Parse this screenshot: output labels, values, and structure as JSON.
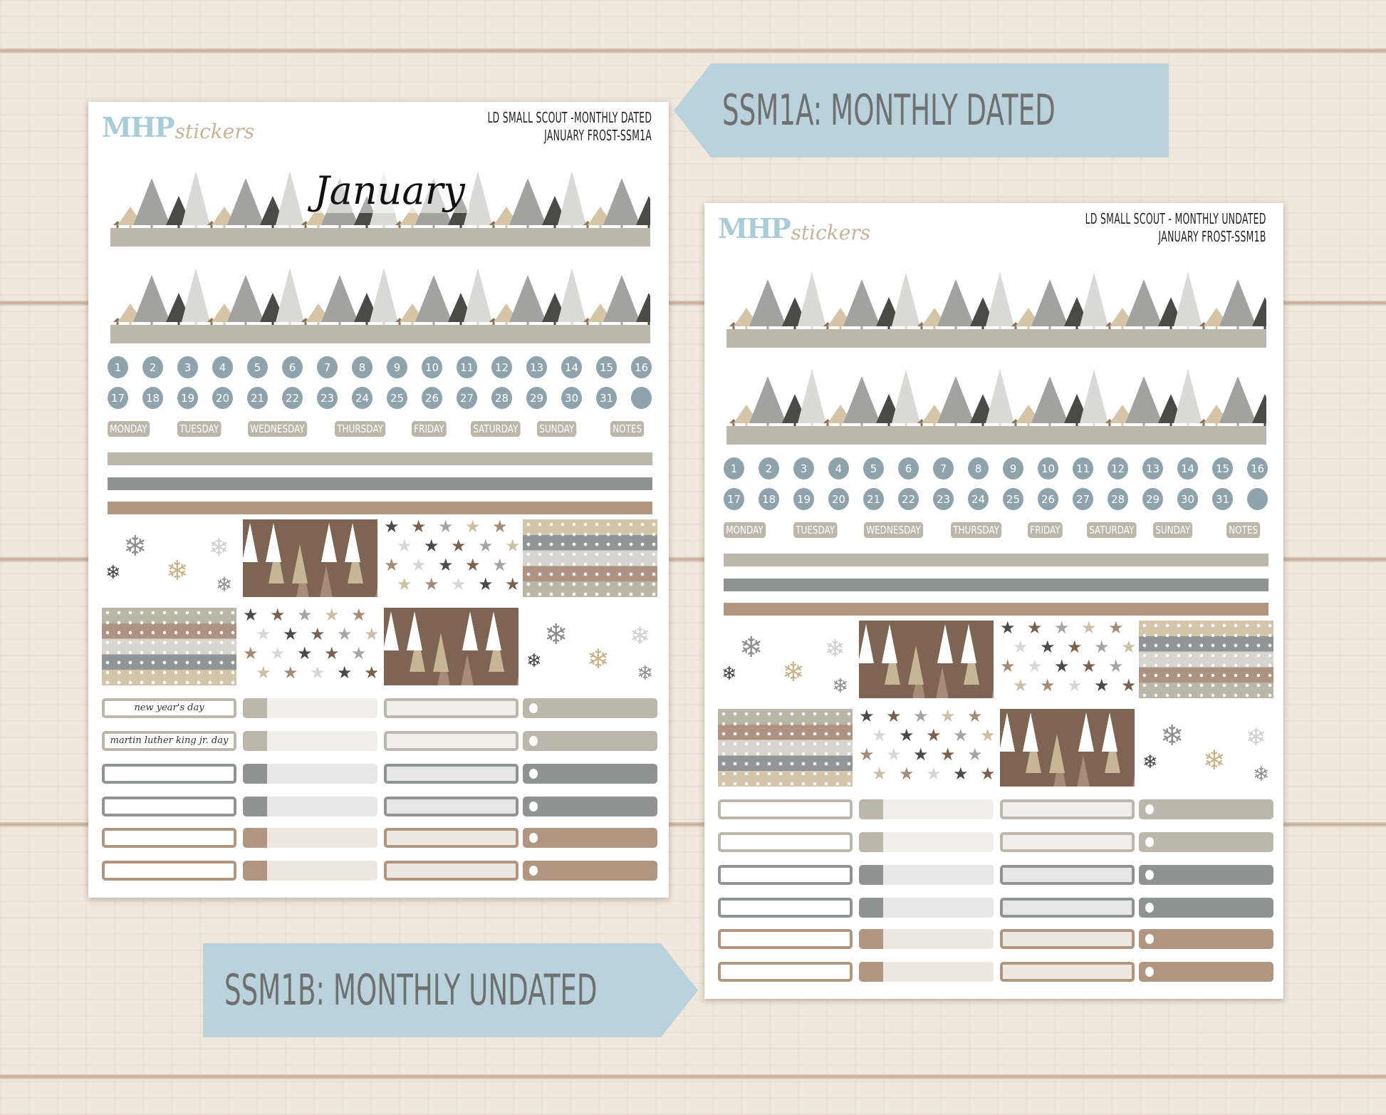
{
  "colors": {
    "tan": "#bdb6aa",
    "gray": "#8f9392",
    "brown": "#b09680",
    "blue": "#8fa3ac",
    "tag": "#b9d2db",
    "wood": "#f0e7dd"
  },
  "tags": [
    {
      "label": "SSM1A: MONTHLY DATED"
    },
    {
      "label": "SSM1B: MONTHLY UNDATED"
    }
  ],
  "sheets": [
    {
      "logo": {
        "mark": "MHP",
        "word": "stickers"
      },
      "header": [
        "LD SMALL SCOUT -MONTHLY DATED",
        "JANUARY FROST-SSM1A"
      ],
      "month": "January",
      "dates": [
        "1",
        "2",
        "3",
        "4",
        "5",
        "6",
        "7",
        "8",
        "9",
        "10",
        "11",
        "12",
        "13",
        "14",
        "15",
        "16",
        "17",
        "18",
        "19",
        "20",
        "21",
        "22",
        "23",
        "24",
        "25",
        "26",
        "27",
        "28",
        "29",
        "30",
        "31",
        ""
      ],
      "days": [
        "MONDAY",
        "TUESDAY",
        "WEDNESDAY",
        "THURSDAY",
        "FRIDAY",
        "SATURDAY",
        "SUNDAY",
        "NOTES"
      ],
      "holidays": [
        "new year's day",
        "martin luther king jr. day",
        "",
        "",
        "",
        ""
      ]
    },
    {
      "logo": {
        "mark": "MHP",
        "word": "stickers"
      },
      "header": [
        "LD SMALL SCOUT - MONTHLY UNDATED",
        "JANUARY FROST-SSM1B"
      ],
      "month": "",
      "dates": [
        "1",
        "2",
        "3",
        "4",
        "5",
        "6",
        "7",
        "8",
        "9",
        "10",
        "11",
        "12",
        "13",
        "14",
        "15",
        "16",
        "17",
        "18",
        "19",
        "20",
        "21",
        "22",
        "23",
        "24",
        "25",
        "26",
        "27",
        "28",
        "29",
        "30",
        "31",
        ""
      ],
      "days": [
        "MONDAY",
        "TUESDAY",
        "WEDNESDAY",
        "THURSDAY",
        "FRIDAY",
        "SATURDAY",
        "SUNDAY",
        "NOTES"
      ],
      "holidays": [
        "",
        "",
        "",
        "",
        "",
        ""
      ]
    }
  ],
  "patterns": [
    "snowflakes",
    "brown-trees",
    "stars",
    "dotted-stripes",
    "dotted-stripes",
    "stars",
    "brown-trees",
    "snowflakes"
  ],
  "label_row_colors": [
    "tan",
    "tan",
    "gray",
    "gray",
    "brown",
    "brown"
  ]
}
